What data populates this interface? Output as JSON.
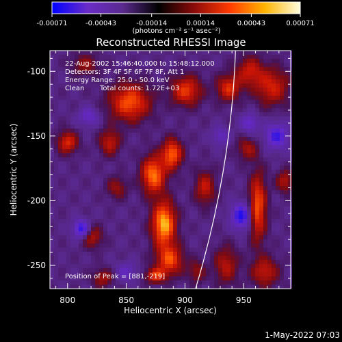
{
  "colorbar": {
    "ticks": [
      "-0.00071",
      "-0.00043",
      "-0.00014",
      "0.00014",
      "0.00043",
      "0.00071"
    ],
    "tick_values": [
      -0.00071,
      -0.00043,
      -0.00014,
      0.00014,
      0.00043,
      0.00071
    ],
    "range": [
      -0.00071,
      0.00071
    ],
    "unit_label": "(photons cm⁻² s⁻¹ asec⁻²)",
    "colors": [
      "#0000ff",
      "#6a2cc8",
      "#5a2a8e",
      "#000000",
      "#8b0a0a",
      "#ff3a00",
      "#ffb400",
      "#ffffe0"
    ]
  },
  "chart_data": {
    "type": "heatmap",
    "title": "Reconstructed RHESSI Image",
    "xlabel": "Heliocentric X (arcsec)",
    "ylabel": "Heliocentric Y (arcsec)",
    "xlim": [
      785,
      990
    ],
    "ylim": [
      -268,
      -84
    ],
    "x_ticks": [
      800,
      850,
      900,
      950
    ],
    "y_ticks": [
      -100,
      -150,
      -200,
      -250
    ],
    "annotations": {
      "time": "22-Aug-2002 15:46:40.000 to 15:48:12.000",
      "detectors": "Detectors: 3F 4F 5F 6F 7F 8F, Att 1",
      "energy": "Energy Range: 25.0 - 50.0 keV",
      "method": "Clean",
      "counts": "Total counts: 1.72E+03",
      "peak": "Position of Peak = [881,-219]"
    },
    "peak": [
      881,
      -219
    ],
    "limb": {
      "x_top": 943,
      "x_bottom": 909
    },
    "sources": [
      {
        "x": 882,
        "y": -218,
        "sx": 7,
        "sy": 12,
        "amp": 1.0
      },
      {
        "x": 873,
        "y": -180,
        "sx": 7,
        "sy": 10,
        "amp": 0.85
      },
      {
        "x": 889,
        "y": -164,
        "sx": 6,
        "sy": 8,
        "amp": 0.8
      },
      {
        "x": 887,
        "y": -246,
        "sx": 8,
        "sy": 8,
        "amp": 0.7
      },
      {
        "x": 875,
        "y": -258,
        "sx": 6,
        "sy": 4,
        "amp": 0.6
      },
      {
        "x": 853,
        "y": -124,
        "sx": 12,
        "sy": 10,
        "amp": 0.75
      },
      {
        "x": 901,
        "y": -115,
        "sx": 9,
        "sy": 8,
        "amp": 0.65
      },
      {
        "x": 937,
        "y": -113,
        "sx": 7,
        "sy": 7,
        "amp": 0.6
      },
      {
        "x": 955,
        "y": -100,
        "sx": 8,
        "sy": 8,
        "amp": 0.5
      },
      {
        "x": 974,
        "y": -112,
        "sx": 10,
        "sy": 10,
        "amp": 0.55
      },
      {
        "x": 917,
        "y": -190,
        "sx": 6,
        "sy": 9,
        "amp": 0.5
      },
      {
        "x": 962,
        "y": -205,
        "sx": 5,
        "sy": 18,
        "amp": 0.75
      },
      {
        "x": 968,
        "y": -255,
        "sx": 8,
        "sy": 8,
        "amp": 0.5
      },
      {
        "x": 935,
        "y": -250,
        "sx": 7,
        "sy": 10,
        "amp": 0.45
      },
      {
        "x": 836,
        "y": -155,
        "sx": 6,
        "sy": 7,
        "amp": 0.5
      },
      {
        "x": 800,
        "y": -155,
        "sx": 6,
        "sy": 6,
        "amp": 0.6
      },
      {
        "x": 821,
        "y": -228,
        "sx": 6,
        "sy": 6,
        "amp": 0.45
      },
      {
        "x": 842,
        "y": -190,
        "sx": 6,
        "sy": 6,
        "amp": 0.35
      },
      {
        "x": 830,
        "y": -260,
        "sx": 6,
        "sy": 5,
        "amp": 0.4
      },
      {
        "x": 953,
        "y": -160,
        "sx": 6,
        "sy": 6,
        "amp": 0.4
      },
      {
        "x": 985,
        "y": -185,
        "sx": 5,
        "sy": 6,
        "amp": 0.45
      },
      {
        "x": 815,
        "y": -95,
        "sx": 8,
        "sy": 6,
        "amp": 0.35
      },
      {
        "x": 910,
        "y": -255,
        "sx": 5,
        "sy": 6,
        "amp": 0.35
      }
    ],
    "negatives": [
      {
        "x": 812,
        "y": -222,
        "sx": 5,
        "sy": 5,
        "amp": -0.7
      },
      {
        "x": 948,
        "y": -212,
        "sx": 6,
        "sy": 7,
        "amp": -0.7
      },
      {
        "x": 978,
        "y": -150,
        "sx": 7,
        "sy": 7,
        "amp": -0.6
      },
      {
        "x": 955,
        "y": -140,
        "sx": 5,
        "sy": 5,
        "amp": -0.45
      },
      {
        "x": 818,
        "y": -135,
        "sx": 6,
        "sy": 5,
        "amp": -0.4
      },
      {
        "x": 930,
        "y": -150,
        "sx": 5,
        "sy": 5,
        "amp": -0.35
      },
      {
        "x": 850,
        "y": -255,
        "sx": 6,
        "sy": 5,
        "amp": -0.35
      }
    ]
  },
  "timestamp": "1-May-2022 07:03"
}
